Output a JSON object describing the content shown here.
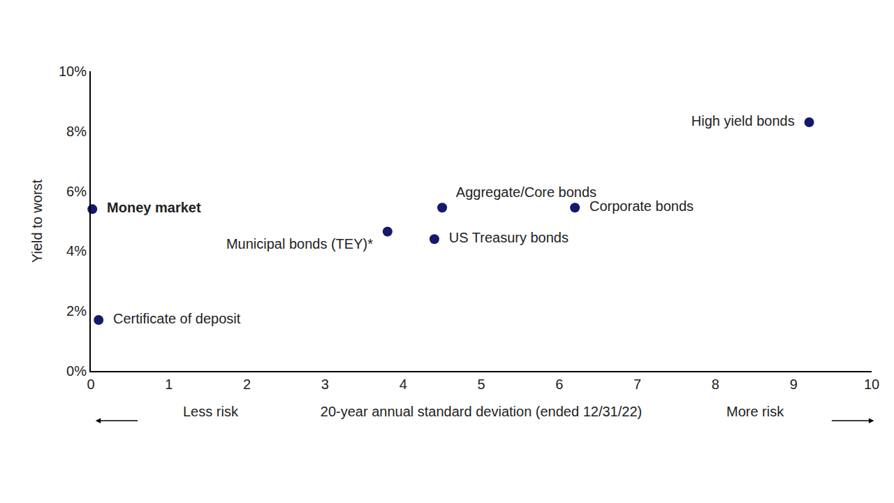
{
  "chart_data": {
    "type": "scatter",
    "x_label": "20-year annual standard deviation (ended 12/31/22)",
    "y_label": "Yield to worst",
    "point_labels": [
      "Money market",
      "Certificate of deposit",
      "Municipal bonds (TEY)*",
      "US Treasury bonds",
      "Aggregate/Core bonds",
      "Corporate bonds",
      "High yield bonds"
    ],
    "x": [
      0.02,
      0.1,
      3.8,
      4.4,
      4.5,
      6.2,
      9.2
    ],
    "values": [
      5.4,
      1.7,
      4.65,
      4.4,
      5.45,
      5.45,
      8.3
    ],
    "color": "#141a6b",
    "marker": "circle",
    "xlim": [
      0,
      10
    ],
    "xticks": [
      0,
      1,
      2,
      3,
      4,
      5,
      6,
      7,
      8,
      9,
      10
    ],
    "ylim": [
      0,
      10
    ],
    "yticks": [
      {
        "value": 0,
        "label": "0%"
      },
      {
        "value": 2,
        "label": "2%"
      },
      {
        "value": 4,
        "label": "4%"
      },
      {
        "value": 6,
        "label": "6%"
      },
      {
        "value": 8,
        "label": "8%"
      },
      {
        "value": 10,
        "label": "10%"
      }
    ],
    "annotations": [
      "Less risk",
      "More risk"
    ],
    "grid": false
  }
}
